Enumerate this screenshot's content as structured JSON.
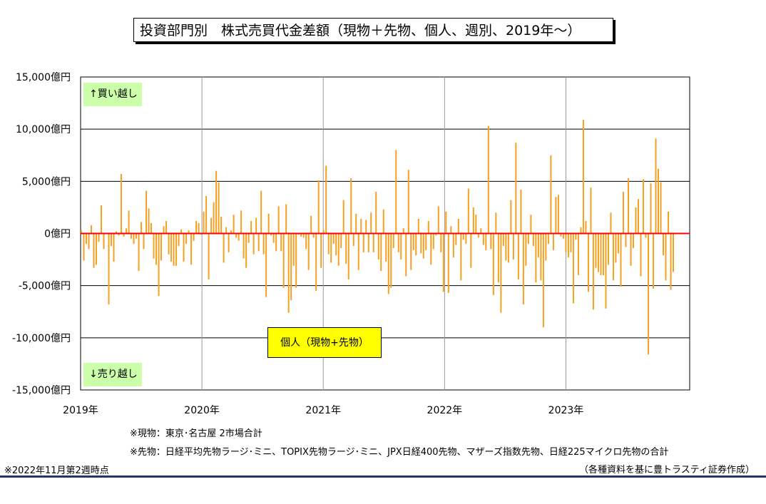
{
  "title": "投資部門別　株式売買代金差額（現物＋先物、個人、週別、2019年～）",
  "labels": {
    "buy": "↑買い越し",
    "sell": "↓売り越し",
    "series": "個人（現物+先物）"
  },
  "notes": {
    "spot": "※現物：東京･名古屋 2市場合計",
    "futures": "※先物：日経平均先物ラージ･ミニ、TOPIX先物ラージ･ミニ、JPX日経400先物、マザーズ指数先物、日経225マイクロ先物の合計",
    "asof": "※2022年11月第2週時点",
    "source": "（各種資料を基に豊トラスティ証券作成）"
  },
  "chart_data": {
    "type": "bar",
    "title": "投資部門別　株式売買代金差額（現物＋先物、個人、週別、2019年～）",
    "ylabel": "",
    "ylim": [
      -15000,
      15000
    ],
    "yticks": [
      {
        "value": 15000,
        "label": "15,000億円"
      },
      {
        "value": 10000,
        "label": "10,000億円"
      },
      {
        "value": 5000,
        "label": "5,000億円"
      },
      {
        "value": 0,
        "label": "0億円"
      },
      {
        "value": -5000,
        "label": "-5,000億円"
      },
      {
        "value": -10000,
        "label": "-10,000億円"
      },
      {
        "value": -15000,
        "label": "-15,000億円"
      }
    ],
    "xticks": [
      "2019年",
      "2020年",
      "2021年",
      "2022年",
      "2023年"
    ],
    "grid": true,
    "colors": {
      "bar": "#f5a020",
      "zero_line": "#ff0000",
      "grid": "#000000",
      "year_grid": "#999999"
    },
    "series": [
      {
        "name": "個人（現物+先物）",
        "values": [
          300,
          -2600,
          -1000,
          -1500,
          800,
          -3300,
          -3000,
          -800,
          2700,
          -1500,
          0,
          -6800,
          -1200,
          -2700,
          200,
          -200,
          5700,
          -300,
          500,
          2200,
          -500,
          -1000,
          -500,
          -3600,
          1100,
          -1500,
          4100,
          2400,
          1000,
          -2400,
          -3000,
          -6000,
          -2600,
          700,
          1200,
          -2000,
          -2700,
          -3100,
          -3100,
          -1200,
          400,
          -2700,
          -1000,
          300,
          -3000,
          -700,
          1200,
          1000,
          -100,
          2100,
          3600,
          -4400,
          1500,
          3000,
          6000,
          4900,
          1600,
          -2800,
          600,
          -1800,
          300,
          1800,
          -400,
          -700,
          2200,
          -2400,
          -3300,
          -900,
          1200,
          -2000,
          1500,
          -1700,
          4100,
          -2000,
          -6100,
          1900,
          -200,
          -900,
          -1700,
          2600,
          -1700,
          -5200,
          2800,
          -7600,
          -6400,
          -3100,
          -5200,
          -100,
          -300,
          -400,
          -1500,
          -3500,
          1700,
          -400,
          -5500,
          5100,
          -3300,
          300,
          6500,
          -2000,
          -2800,
          -1000,
          -2100,
          -3100,
          -1400,
          3200,
          -2900,
          -4400,
          5300,
          -1200,
          1900,
          -3500,
          1400,
          -1800,
          1300,
          -1800,
          2000,
          -1800,
          4000,
          -2500,
          -3600,
          2300,
          -2700,
          -5800,
          -5200,
          -1400,
          8000,
          -1800,
          -2500,
          500,
          -4100,
          6100,
          -3500,
          -1600,
          -2100,
          1400,
          -1900,
          -2400,
          -1600,
          1200,
          -3000,
          -1500,
          -200,
          2600,
          -1800,
          -5600,
          2100,
          -5700,
          700,
          -2300,
          -1100,
          1400,
          -4500,
          -600,
          -1000,
          4300,
          -3300,
          2500,
          1800,
          -400,
          500,
          -1100,
          -1600,
          10300,
          -1500,
          -5900,
          2000,
          -4700,
          -7600,
          -1200,
          -2600,
          -2800,
          3200,
          -2500,
          8700,
          -4400,
          4200,
          -6800,
          -3100,
          -1000,
          1800,
          -1200,
          -4700,
          -2300,
          -4500,
          -9000,
          -2600,
          -1000,
          7500,
          -1600,
          3500,
          3700,
          -300,
          -500,
          -1800,
          -2300,
          -1800,
          -6700,
          -600,
          -4000,
          600,
          10900,
          1200,
          -5600,
          4400,
          -7300,
          -3300,
          -3700,
          -4000,
          -4000,
          -7200,
          -3000,
          2000,
          -4500,
          -2800,
          -1900,
          -5100,
          4000,
          -1300,
          5300,
          -3100,
          -1400,
          2500,
          3300,
          -4100,
          5200,
          -400,
          -11600,
          4800,
          -5300,
          9100,
          6200,
          4900,
          -2100,
          -4500,
          2100,
          -5400,
          -3700
        ]
      }
    ]
  }
}
